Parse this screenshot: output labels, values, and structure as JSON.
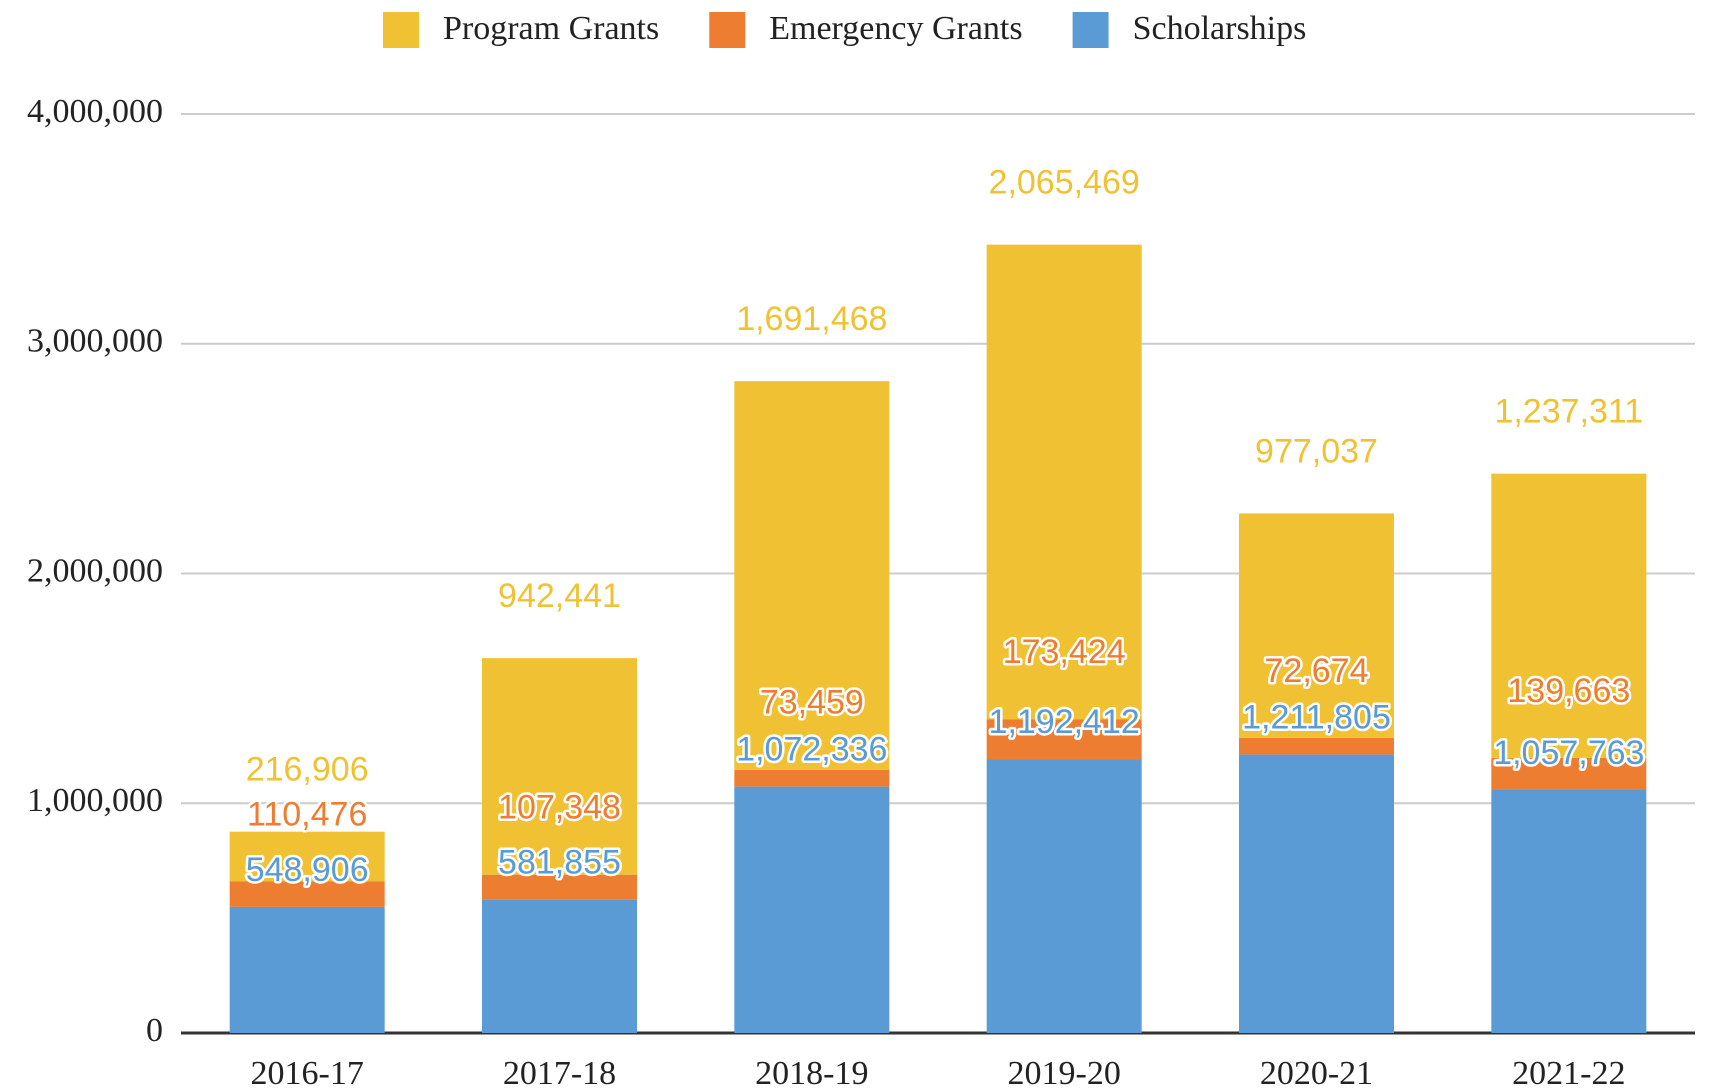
{
  "chart_data": {
    "type": "stacked_bar",
    "categories": [
      "2016-17",
      "2017-18",
      "2018-19",
      "2019-20",
      "2020-21",
      "2021-22"
    ],
    "series": [
      {
        "name": "Scholarships",
        "color": "#5b9bd5",
        "values": [
          548906,
          581855,
          1072336,
          1192412,
          1211805,
          1057763
        ],
        "value_labels": [
          "548,906",
          "581,855",
          "1,072,336",
          "1,192,412",
          "1,211,805",
          "1,057,763"
        ]
      },
      {
        "name": "Emergency Grants",
        "color": "#ed7d31",
        "values": [
          110476,
          107348,
          73459,
          173424,
          72674,
          139663
        ],
        "value_labels": [
          "110,476",
          "107,348",
          "73,459",
          "173,424",
          "72,674",
          "139,663"
        ]
      },
      {
        "name": "Program Grants",
        "color": "#f0c233",
        "values": [
          216906,
          942441,
          1691468,
          2065469,
          977037,
          1237311
        ],
        "value_labels": [
          "216,906",
          "942,441",
          "1,691,468",
          "2,065,469",
          "977,037",
          "1,237,311"
        ]
      }
    ],
    "legend_order": [
      "Program Grants",
      "Emergency Grants",
      "Scholarships"
    ],
    "ylim": [
      0,
      4000000
    ],
    "yticks": [
      0,
      {
        "value": 1000000,
        "label": "1,000,000"
      },
      {
        "value": 2000000,
        "label": "2,000,000"
      },
      {
        "value": 3000000,
        "label": "3,000,000"
      },
      {
        "value": 4000000,
        "label": "4,000,000"
      }
    ],
    "grid": true,
    "legend": "top"
  }
}
